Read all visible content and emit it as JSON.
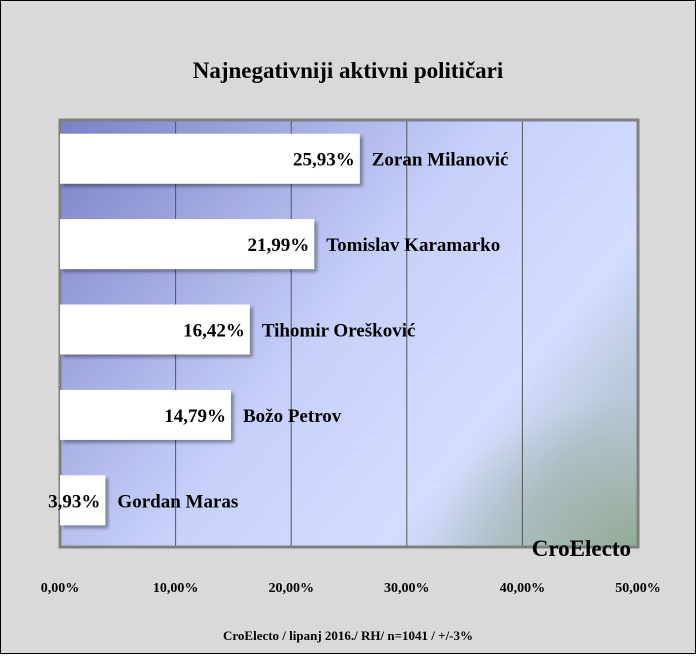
{
  "chart_data": {
    "type": "bar",
    "orientation": "horizontal",
    "title": "Najnegativniji aktivni političari",
    "categories": [
      "Zoran Milanović",
      "Tomislav Karamarko",
      "Tihomir Orešković",
      "Božo Petrov",
      "Gordan Maras"
    ],
    "values": [
      25.93,
      21.99,
      16.42,
      14.79,
      3.93
    ],
    "value_labels": [
      "25,93%",
      "21,99%",
      "16,42%",
      "14,79%",
      "3,93%"
    ],
    "xlim": [
      0,
      50
    ],
    "x_ticks": [
      0,
      10,
      20,
      30,
      40,
      50
    ],
    "x_tick_labels": [
      "0,00%",
      "10,00%",
      "20,00%",
      "30,00%",
      "40,00%",
      "50,00%"
    ],
    "grid": "vertical",
    "watermark": "CroElecto",
    "footnote": "CroElecto / lipanj 2016./ RH/ n=1041 / +/-3%"
  },
  "colors": {
    "background": "#d9d9d9",
    "plot_gradient_start": "#7f86c9",
    "plot_gradient_end": "#d3dcff",
    "bar_fill": "#ffffff"
  }
}
